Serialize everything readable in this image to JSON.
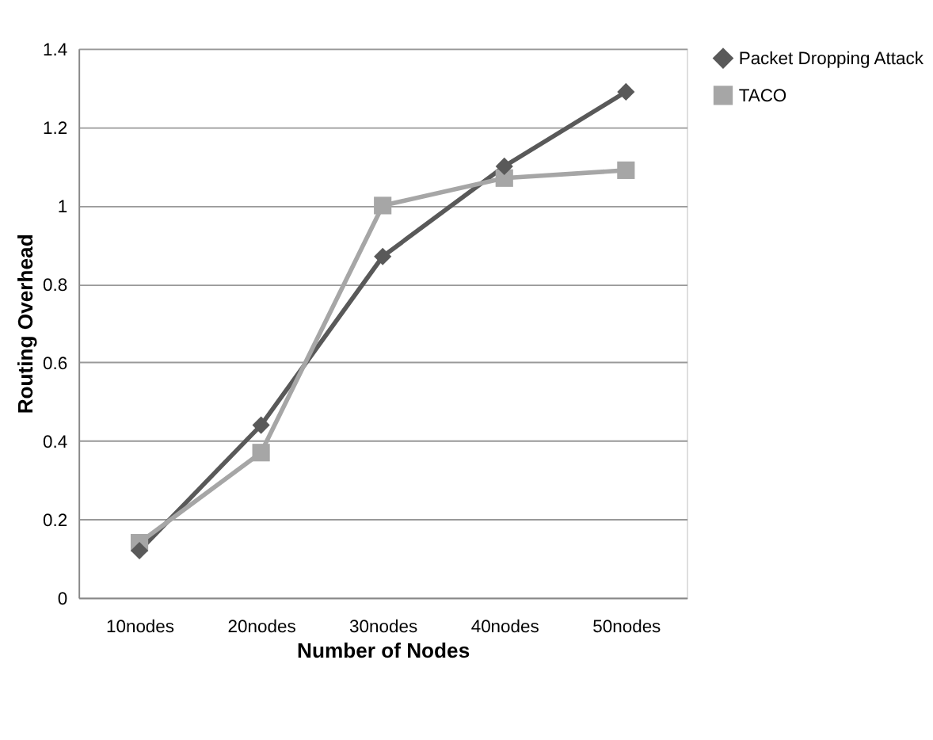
{
  "chart_data": {
    "type": "line",
    "xlabel": "Number of Nodes",
    "ylabel": "Routing Overhead",
    "categories": [
      "10nodes",
      "20nodes",
      "30nodes",
      "40nodes",
      "50nodes"
    ],
    "series": [
      {
        "name": "Packet Dropping Attack",
        "color": "#595959",
        "marker": "diamond",
        "values": [
          0.12,
          0.44,
          0.87,
          1.1,
          1.29
        ]
      },
      {
        "name": "TACO",
        "color": "#a6a6a6",
        "marker": "square",
        "values": [
          0.14,
          0.37,
          1.0,
          1.07,
          1.09
        ]
      }
    ],
    "ylim": [
      0,
      1.4
    ],
    "yticks": [
      0,
      0.2,
      0.4,
      0.6,
      0.8,
      1,
      1.2,
      1.4
    ],
    "grid": "y",
    "legend": "right",
    "line_style": "solid"
  }
}
